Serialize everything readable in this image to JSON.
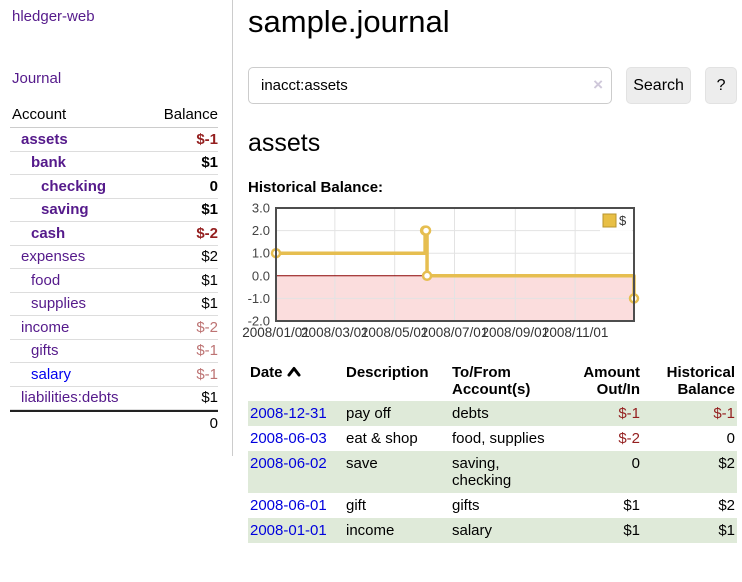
{
  "app": {
    "title": "hledger-web",
    "nav_journal": "Journal"
  },
  "colors": {
    "link_purple": "#551a8b",
    "link_blue": "#0000ee",
    "negative_strong": "#941f1f",
    "negative_muted": "#bd7373",
    "row_stripe_green": "#dfead9",
    "chart_gold": "#e6be50",
    "chart_negative_fill": "#fbdddd",
    "chart_zero_line": "#8b0000",
    "button_gray": "#ededed"
  },
  "sidebar": {
    "headers": {
      "account": "Account",
      "balance": "Balance"
    },
    "accounts": [
      {
        "name": "assets",
        "indent": 0,
        "balance": "$-1",
        "bold": true,
        "neg": "strong"
      },
      {
        "name": "bank",
        "indent": 1,
        "balance": "$1",
        "bold": true,
        "neg": ""
      },
      {
        "name": "checking",
        "indent": 2,
        "balance": "0",
        "bold": true,
        "neg": ""
      },
      {
        "name": "saving",
        "indent": 2,
        "balance": "$1",
        "bold": true,
        "neg": ""
      },
      {
        "name": "cash",
        "indent": 1,
        "balance": "$-2",
        "bold": true,
        "neg": "strong"
      },
      {
        "name": "expenses",
        "indent": 0,
        "balance": "$2",
        "bold": false,
        "neg": ""
      },
      {
        "name": "food",
        "indent": 1,
        "balance": "$1",
        "bold": false,
        "neg": ""
      },
      {
        "name": "supplies",
        "indent": 1,
        "balance": "$1",
        "bold": false,
        "neg": ""
      },
      {
        "name": "income",
        "indent": 0,
        "balance": "$-2",
        "bold": false,
        "neg": "muted"
      },
      {
        "name": "gifts",
        "indent": 1,
        "balance": "$-1",
        "bold": false,
        "neg": "muted"
      },
      {
        "name": "salary",
        "indent": 1,
        "balance": "$-1",
        "bold": false,
        "neg": "muted",
        "blue": true
      },
      {
        "name": "liabilities:debts",
        "indent": 0,
        "balance": "$1",
        "bold": false,
        "neg": ""
      }
    ],
    "total": "0"
  },
  "header": {
    "title": "sample.journal"
  },
  "search": {
    "value": "inacct:assets",
    "button_label": "Search",
    "help_label": "?",
    "icons": {
      "clear_search": "×"
    }
  },
  "account_page": {
    "heading": "assets",
    "chart_label": "Historical Balance:"
  },
  "chart_data": {
    "type": "line",
    "title": "Historical Balance",
    "step": true,
    "series": [
      {
        "name": "$",
        "points": [
          [
            "2008-01-01",
            1
          ],
          [
            "2008-06-01",
            2
          ],
          [
            "2008-06-02",
            2
          ],
          [
            "2008-06-03",
            0
          ],
          [
            "2008-12-31",
            -1
          ]
        ]
      }
    ],
    "x_range": [
      "2008-01-01",
      "2008-12-31"
    ],
    "ylim": [
      -2,
      3
    ],
    "yticks": [
      "3.0",
      "2.0",
      "1.0",
      "0.0",
      "-1.0",
      "-2.0"
    ],
    "xticks": [
      "2008/01/01",
      "2008/03/01",
      "2008/05/01",
      "2008/07/01",
      "2008/09/01",
      "2008/11/01"
    ],
    "legend": {
      "label": "$",
      "position": "top-right"
    },
    "grid": true,
    "negative_region_shaded": true
  },
  "register": {
    "headers": {
      "date": "Date",
      "description": "Description",
      "accounts": "To/From Account(s)",
      "amount": "Amount Out/In",
      "balance": "Historical Balance"
    },
    "sort_icon": "chevron-up",
    "rows": [
      {
        "date": "2008-12-31",
        "description": "pay off",
        "accounts": "debts",
        "amount": "$-1",
        "balance": "$-1"
      },
      {
        "date": "2008-06-03",
        "description": "eat & shop",
        "accounts": "food, supplies",
        "amount": "$-2",
        "balance": "0"
      },
      {
        "date": "2008-06-02",
        "description": "save",
        "accounts": "saving, checking",
        "amount": "0",
        "balance": "$2"
      },
      {
        "date": "2008-06-01",
        "description": "gift",
        "accounts": "gifts",
        "amount": "$1",
        "balance": "$2"
      },
      {
        "date": "2008-01-01",
        "description": "income",
        "accounts": "salary",
        "amount": "$1",
        "balance": "$1"
      }
    ]
  }
}
